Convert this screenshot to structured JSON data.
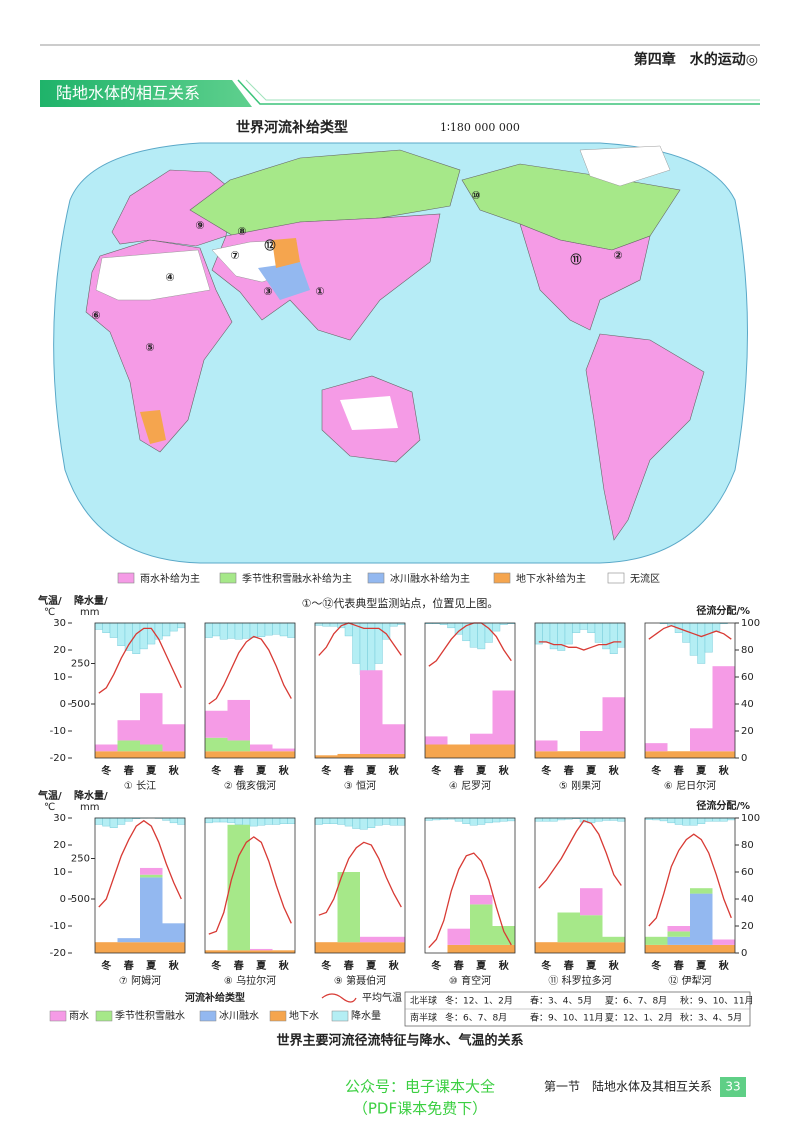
{
  "header": {
    "chapter": "第四章　水的运动◎",
    "section": "陆地水体的相互关系"
  },
  "map": {
    "title": "世界河流补给类型",
    "scale": "1∶180 000 000",
    "stations": [
      "①",
      "②",
      "③",
      "④",
      "⑤",
      "⑥",
      "⑦",
      "⑧",
      "⑨",
      "⑩",
      "⑪",
      "⑫"
    ],
    "legend": [
      {
        "name": "雨水补给为主",
        "color": "#f59be6"
      },
      {
        "name": "季节性积雪融水补给为主",
        "color": "#a6e889"
      },
      {
        "name": "冰川融水补给为主",
        "color": "#93b8f0"
      },
      {
        "name": "地下水补给为主",
        "color": "#f5a54e"
      },
      {
        "name": "无流区",
        "color": "#ffffff"
      }
    ],
    "note": "①～⑫代表典型监测站点，位置见上图。"
  },
  "chart_axes": {
    "temp_title": "气温/",
    "temp_unit": "℃",
    "precip_title": "降水量/",
    "precip_unit": "mm",
    "runoff_title": "径流分配/%",
    "ylim": [
      -20,
      30
    ],
    "yticks": [
      -20,
      -10,
      0,
      10,
      20,
      30
    ],
    "precip_lim": [
      0,
      833.3
    ],
    "precip_ticks": [
      250,
      500
    ],
    "runoff_lim": [
      0,
      100
    ],
    "runoff_ticks": [
      0,
      20,
      40,
      60,
      80,
      100
    ],
    "categories": [
      "冬",
      "春",
      "夏",
      "秋"
    ]
  },
  "chart_data": [
    {
      "type": "combo",
      "name": "① 长江",
      "temp": [
        4,
        6,
        11,
        17,
        22,
        26,
        28,
        28,
        24,
        18,
        12,
        6
      ],
      "precip": [
        40,
        60,
        90,
        140,
        170,
        190,
        160,
        130,
        100,
        80,
        50,
        30
      ],
      "ground": [
        5,
        5,
        5,
        5
      ],
      "glacier": [
        0,
        0,
        0,
        0
      ],
      "snow": [
        0,
        8,
        5,
        0
      ],
      "rain": [
        5,
        15,
        38,
        20
      ]
    },
    {
      "type": "combo",
      "name": "② 俄亥俄河",
      "temp": [
        0,
        2,
        7,
        13,
        19,
        23,
        25,
        24,
        20,
        14,
        7,
        2
      ],
      "precip": [
        90,
        80,
        100,
        95,
        100,
        95,
        90,
        85,
        75,
        70,
        80,
        90
      ],
      "ground": [
        5,
        5,
        5,
        5
      ],
      "glacier": [
        0,
        0,
        0,
        0
      ],
      "snow": [
        10,
        8,
        0,
        0
      ],
      "rain": [
        20,
        30,
        5,
        2
      ]
    },
    {
      "type": "combo",
      "name": "③ 恒河",
      "temp": [
        18,
        21,
        26,
        29,
        30,
        29,
        28,
        28,
        28,
        26,
        22,
        18
      ],
      "precip": [
        15,
        20,
        20,
        30,
        80,
        250,
        320,
        300,
        250,
        100,
        20,
        10
      ],
      "ground": [
        2,
        3,
        3,
        3
      ],
      "glacier": [
        0,
        0,
        0,
        0
      ],
      "snow": [
        0,
        0,
        0,
        0
      ],
      "rain": [
        0,
        0,
        62,
        22
      ]
    },
    {
      "type": "combo",
      "name": "④ 尼罗河",
      "temp": [
        14,
        16,
        20,
        24,
        27,
        29,
        30,
        30,
        28,
        25,
        20,
        16
      ],
      "precip": [
        5,
        5,
        10,
        30,
        70,
        110,
        150,
        160,
        120,
        50,
        10,
        5
      ],
      "ground": [
        10,
        10,
        10,
        10
      ],
      "glacier": [
        0,
        0,
        0,
        0
      ],
      "snow": [
        0,
        0,
        0,
        0
      ],
      "rain": [
        6,
        0,
        8,
        40
      ]
    },
    {
      "type": "combo",
      "name": "⑤ 刚果河",
      "temp": [
        23,
        23,
        22,
        22,
        21,
        21,
        20,
        21,
        22,
        22,
        23,
        23
      ],
      "precip": [
        130,
        120,
        160,
        170,
        130,
        60,
        40,
        60,
        120,
        160,
        190,
        150
      ],
      "ground": [
        5,
        5,
        5,
        5
      ],
      "glacier": [
        0,
        0,
        0,
        0
      ],
      "snow": [
        0,
        0,
        0,
        0
      ],
      "rain": [
        8,
        0,
        15,
        40
      ]
    },
    {
      "type": "combo",
      "name": "⑥ 尼日尔河",
      "temp": [
        24,
        26,
        28,
        29,
        28,
        27,
        26,
        25,
        26,
        27,
        26,
        24
      ],
      "precip": [
        0,
        0,
        5,
        20,
        60,
        120,
        200,
        250,
        180,
        50,
        5,
        0
      ],
      "ground": [
        5,
        5,
        5,
        5
      ],
      "glacier": [
        0,
        0,
        0,
        0
      ],
      "snow": [
        0,
        0,
        0,
        0
      ],
      "rain": [
        6,
        0,
        17,
        63
      ]
    },
    {
      "type": "combo",
      "name": "⑦ 阿姆河",
      "temp": [
        -3,
        0,
        8,
        16,
        22,
        27,
        29,
        27,
        21,
        13,
        6,
        0
      ],
      "precip": [
        40,
        50,
        60,
        40,
        20,
        5,
        2,
        1,
        3,
        15,
        30,
        40
      ],
      "ground": [
        8,
        8,
        8,
        8
      ],
      "glacier": [
        0,
        3,
        48,
        14
      ],
      "snow": [
        0,
        0,
        2,
        0
      ],
      "rain": [
        0,
        0,
        5,
        0
      ]
    },
    {
      "type": "combo",
      "name": "⑧ 乌拉尔河",
      "temp": [
        -13,
        -12,
        -5,
        7,
        16,
        21,
        23,
        21,
        14,
        5,
        -3,
        -9
      ],
      "precip": [
        30,
        25,
        25,
        30,
        40,
        50,
        50,
        45,
        40,
        40,
        35,
        35
      ],
      "ground": [
        2,
        2,
        2,
        2
      ],
      "glacier": [
        0,
        0,
        0,
        0
      ],
      "snow": [
        0,
        93,
        0,
        0
      ],
      "rain": [
        0,
        0,
        1,
        0
      ]
    },
    {
      "type": "combo",
      "name": "⑨ 第聂伯河",
      "temp": [
        -6,
        -5,
        0,
        8,
        15,
        19,
        21,
        20,
        15,
        8,
        2,
        -3
      ],
      "precip": [
        40,
        35,
        35,
        40,
        50,
        65,
        70,
        60,
        45,
        40,
        45,
        45
      ],
      "ground": [
        8,
        8,
        8,
        8
      ],
      "glacier": [
        0,
        0,
        0,
        0
      ],
      "snow": [
        0,
        52,
        0,
        0
      ],
      "rain": [
        0,
        0,
        4,
        4
      ]
    },
    {
      "type": "combo",
      "name": "⑩ 育空河",
      "temp": [
        -18,
        -15,
        -8,
        3,
        11,
        16,
        17,
        14,
        7,
        -3,
        -12,
        -17
      ],
      "precip": [
        15,
        12,
        10,
        8,
        20,
        35,
        45,
        40,
        30,
        25,
        20,
        18
      ],
      "ground": [
        0,
        6,
        6,
        6
      ],
      "glacier": [
        0,
        0,
        0,
        0
      ],
      "snow": [
        0,
        0,
        30,
        14
      ],
      "rain": [
        0,
        12,
        7,
        0
      ]
    },
    {
      "type": "combo",
      "name": "⑪ 科罗拉多河",
      "temp": [
        4,
        7,
        11,
        15,
        20,
        25,
        29,
        28,
        24,
        17,
        9,
        5
      ],
      "precip": [
        20,
        20,
        20,
        12,
        8,
        5,
        25,
        30,
        20,
        15,
        15,
        20
      ],
      "ground": [
        8,
        8,
        8,
        8
      ],
      "glacier": [
        0,
        0,
        0,
        0
      ],
      "snow": [
        0,
        22,
        20,
        4
      ],
      "rain": [
        0,
        0,
        20,
        0
      ]
    },
    {
      "type": "combo",
      "name": "⑫ 伊犁河",
      "temp": [
        -10,
        -7,
        2,
        12,
        18,
        22,
        24,
        22,
        17,
        9,
        0,
        -7
      ],
      "precip": [
        10,
        12,
        18,
        30,
        40,
        45,
        45,
        35,
        20,
        20,
        20,
        12
      ],
      "ground": [
        6,
        6,
        6,
        6
      ],
      "glacier": [
        0,
        6,
        38,
        0
      ],
      "snow": [
        6,
        4,
        4,
        0
      ],
      "rain": [
        0,
        4,
        0,
        4
      ]
    }
  ],
  "legend": {
    "title": "河流补给类型",
    "items": [
      {
        "key": "rain",
        "name": "雨水",
        "color": "#f59be6"
      },
      {
        "key": "snow",
        "name": "季节性积雪融水",
        "color": "#a6e889"
      },
      {
        "key": "glacier",
        "name": "冰川融水",
        "color": "#93b8f0"
      },
      {
        "key": "ground",
        "name": "地下水",
        "color": "#f5a54e"
      },
      {
        "key": "precip",
        "name": "降水量",
        "color": "#b4eef4"
      }
    ],
    "temp": {
      "name": "平均气温",
      "color": "#d83a34"
    }
  },
  "seasons": {
    "rows": [
      [
        "北半球",
        "冬：12、1、2月",
        "春：3、4、5月",
        "夏：6、7、8月",
        "秋：9、10、11月"
      ],
      [
        "南半球",
        "冬：6、7、8月",
        "春：9、10、11月",
        "夏：12、1、2月",
        "秋：3、4、5月"
      ]
    ]
  },
  "caption": "世界主要河流径流特征与降水、气温的关系",
  "footer": {
    "watermark": [
      "公众号：电子课本大全",
      "（PDF课本免费下）"
    ],
    "section": "第一节　陆地水体及其相互关系",
    "page": "33"
  }
}
